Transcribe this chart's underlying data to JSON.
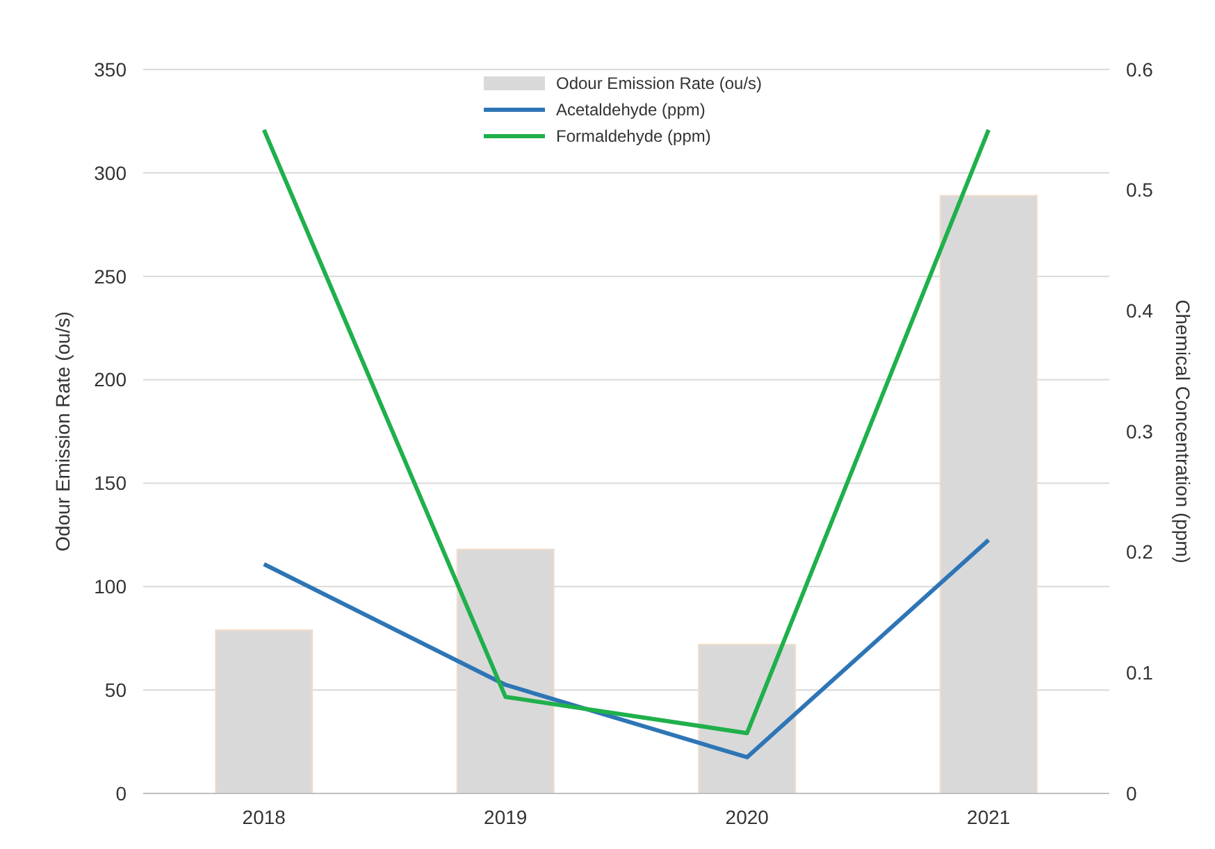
{
  "chart_data": {
    "type": "bar",
    "categories": [
      "2018",
      "2019",
      "2020",
      "2021"
    ],
    "ylabel": "Odour Emission Rate (ou/s)",
    "y2label": "Chemical Concentration (ppm)",
    "ylim": [
      0,
      350
    ],
    "yticks": [
      0,
      50,
      100,
      150,
      200,
      250,
      300,
      350
    ],
    "y2lim": [
      0,
      0.6
    ],
    "y2ticks": [
      0,
      0.1,
      0.2,
      0.3,
      0.4,
      0.5,
      0.6
    ],
    "grid": "y",
    "legend": "top",
    "series": [
      {
        "name": "Odour Emission Rate (ou/s)",
        "type": "bar",
        "color": "#d9d9d9",
        "values": [
          79,
          118,
          72,
          289
        ]
      },
      {
        "name": "Acetaldehyde (ppm)",
        "type": "line",
        "axis": "y2",
        "color": "#2e75b6",
        "values": [
          0.19,
          0.09,
          0.03,
          0.21
        ]
      },
      {
        "name": "Formaldehyde (ppm)",
        "type": "line",
        "axis": "y2",
        "color": "#1fb04b",
        "values": [
          0.55,
          0.08,
          0.05,
          0.55
        ]
      }
    ]
  }
}
